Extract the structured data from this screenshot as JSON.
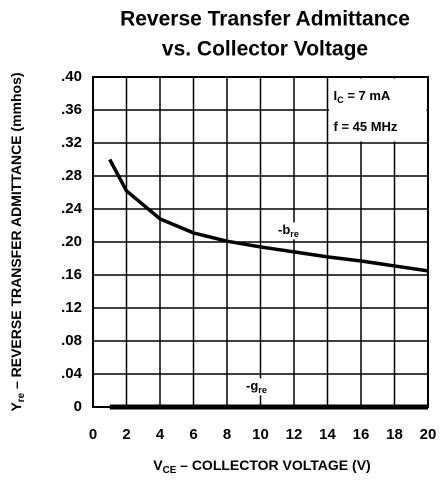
{
  "chart_data": {
    "type": "line",
    "title": [
      "Reverse Transfer Admittance",
      "vs. Collector Voltage"
    ],
    "x_label": {
      "main": "V",
      "sub": "CE",
      "rest": " – COLLECTOR VOLTAGE (V)"
    },
    "y_label": {
      "main": "Y",
      "sub": "re",
      "rest": " – REVERSE TRANSFER ADMITTANCE (mmhos)"
    },
    "annotations": [
      {
        "main": "I",
        "sub": "C",
        "rest": " = 7 mA"
      },
      {
        "main": "f = 45 MHz"
      }
    ],
    "x": [
      1,
      2,
      4,
      6,
      8,
      10,
      12,
      14,
      16,
      18,
      20
    ],
    "series": [
      {
        "name": {
          "main": "-b",
          "sub": "re"
        },
        "color": "#000000",
        "values": [
          0.3,
          0.262,
          0.228,
          0.211,
          0.201,
          0.194,
          0.188,
          0.182,
          0.177,
          0.171,
          0.165
        ]
      },
      {
        "name": {
          "main": "-g",
          "sub": "re"
        },
        "color": "#000000",
        "values": [
          0,
          0,
          0,
          0,
          0,
          0,
          0,
          0,
          0,
          0,
          0
        ]
      }
    ],
    "xlim": [
      0,
      20
    ],
    "xticks": [
      0,
      2,
      4,
      6,
      8,
      10,
      12,
      14,
      16,
      18,
      20
    ],
    "ylim": [
      0,
      0.4
    ],
    "yticks": [
      0,
      {
        "value": 0.04,
        "label": ".04"
      },
      {
        "value": 0.08,
        "label": ".08"
      },
      {
        "value": 0.12,
        "label": ".12"
      },
      {
        "value": 0.16,
        "label": ".16"
      },
      {
        "value": 0.2,
        "label": ".20"
      },
      {
        "value": 0.24,
        "label": ".24"
      },
      {
        "value": 0.28,
        "label": ".28"
      },
      {
        "value": 0.32,
        "label": ".32"
      },
      {
        "value": 0.36,
        "label": ".36"
      },
      {
        "value": 0.4,
        "label": ".40"
      }
    ],
    "grid": true
  }
}
